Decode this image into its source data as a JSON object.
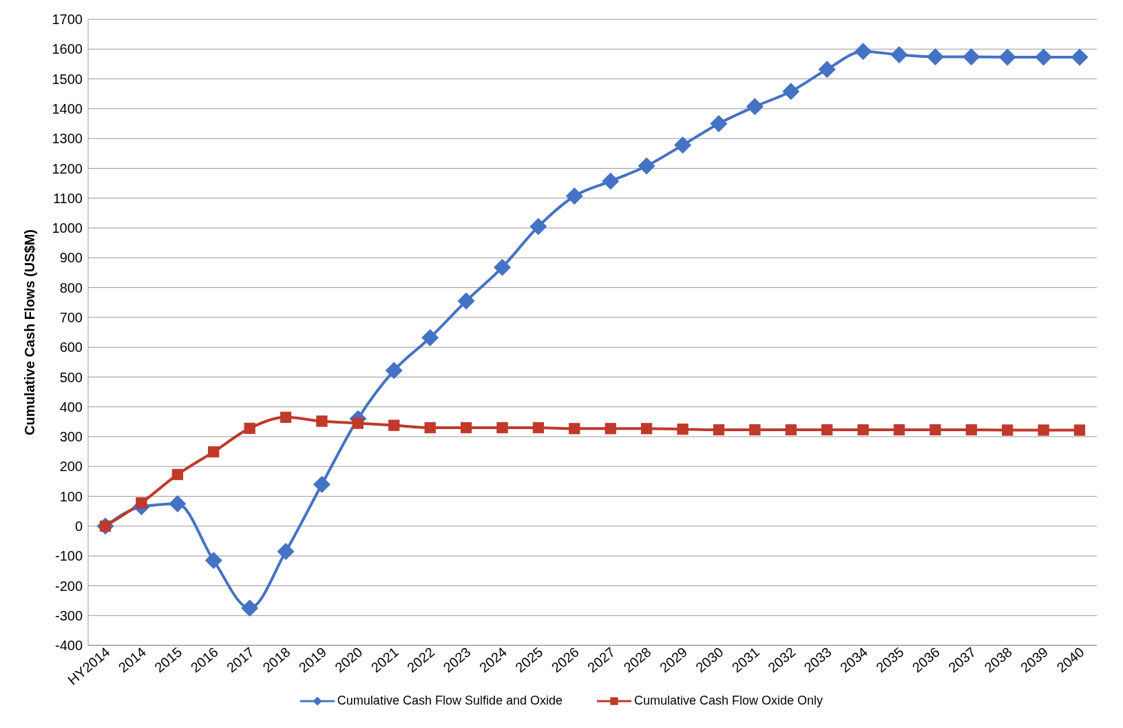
{
  "chart_data": {
    "type": "line",
    "ylabel": "Cumulative Cash Flows (US$M)",
    "categories": [
      "HY2014",
      "2014",
      "2015",
      "2016",
      "2017",
      "2018",
      "2019",
      "2020",
      "2021",
      "2022",
      "2023",
      "2024",
      "2025",
      "2026",
      "2027",
      "2028",
      "2029",
      "2030",
      "2031",
      "2032",
      "2033",
      "2034",
      "2035",
      "2036",
      "2037",
      "2038",
      "2039",
      "2040"
    ],
    "series": [
      {
        "name": "Cumulative Cash Flow Sulfide and Oxide",
        "color": "#4472c4",
        "marker": "diamond",
        "values": [
          0,
          65,
          75,
          -115,
          -275,
          -85,
          140,
          360,
          522,
          632,
          755,
          868,
          1005,
          1107,
          1157,
          1208,
          1278,
          1350,
          1407,
          1458,
          1532,
          1592,
          1581,
          1574,
          1574,
          1573,
          1573,
          1573
        ]
      },
      {
        "name": "Cumulative Cash Flow Oxide Only",
        "color": "#c0392b",
        "marker": "square",
        "values": [
          0,
          78,
          173,
          249,
          328,
          365,
          352,
          345,
          338,
          330,
          330,
          330,
          330,
          327,
          327,
          327,
          325,
          323,
          323,
          323,
          323,
          323,
          323,
          323,
          323,
          322,
          322,
          322
        ]
      }
    ],
    "ylim": [
      -400,
      1700
    ],
    "yticks": [
      -400,
      -300,
      -200,
      -100,
      0,
      100,
      200,
      300,
      400,
      500,
      600,
      700,
      800,
      900,
      1000,
      1100,
      1200,
      1300,
      1400,
      1500,
      1600,
      1700
    ],
    "grid": "y",
    "legend": "bottom"
  }
}
